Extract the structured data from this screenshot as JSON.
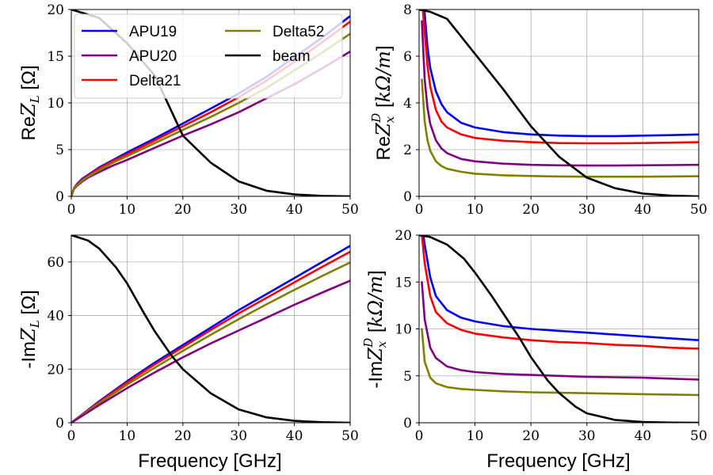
{
  "chart_data": [
    {
      "type": "line",
      "ylabel": "ReZ_L [Ω]",
      "xlim": [
        0,
        50
      ],
      "ylim": [
        0,
        20
      ],
      "xticks": [
        0,
        10,
        20,
        30,
        40,
        50
      ],
      "yticks": [
        0,
        5,
        10,
        15,
        20
      ],
      "xlabel": "",
      "grid": true,
      "legend": {
        "placement": "top-left",
        "columns": 2
      },
      "series": [
        {
          "name": "APU19",
          "color": "#0000ff",
          "x": [
            0,
            0.5,
            1,
            2,
            3,
            5,
            7.5,
            10,
            15,
            20,
            25,
            30,
            35,
            40,
            45,
            50
          ],
          "y": [
            0,
            0.9,
            1.3,
            1.9,
            2.3,
            3.1,
            3.9,
            4.7,
            6.2,
            7.8,
            9.4,
            11.0,
            12.8,
            14.9,
            17.0,
            19.3
          ]
        },
        {
          "name": "APU20",
          "color": "#800080",
          "x": [
            0,
            0.5,
            1,
            2,
            3,
            5,
            7.5,
            10,
            15,
            20,
            25,
            30,
            35,
            40,
            45,
            50
          ],
          "y": [
            0,
            0.8,
            1.1,
            1.6,
            2.0,
            2.6,
            3.3,
            3.9,
            5.2,
            6.5,
            7.7,
            9.0,
            10.5,
            12.0,
            13.7,
            15.5
          ]
        },
        {
          "name": "Delta21",
          "color": "#ff0000",
          "x": [
            0,
            0.5,
            1,
            2,
            3,
            5,
            7.5,
            10,
            15,
            20,
            25,
            30,
            35,
            40,
            45,
            50
          ],
          "y": [
            0,
            0.9,
            1.2,
            1.8,
            2.2,
            3.0,
            3.8,
            4.5,
            6.0,
            7.5,
            9.0,
            10.6,
            12.4,
            14.4,
            16.5,
            18.7
          ]
        },
        {
          "name": "Delta52",
          "color": "#808000",
          "x": [
            0,
            0.5,
            1,
            2,
            3,
            5,
            7.5,
            10,
            15,
            20,
            25,
            30,
            35,
            40,
            45,
            50
          ],
          "y": [
            0,
            0.85,
            1.15,
            1.7,
            2.1,
            2.8,
            3.6,
            4.3,
            5.7,
            7.1,
            8.5,
            10.0,
            11.6,
            13.5,
            15.4,
            17.4
          ]
        },
        {
          "name": "beam",
          "color": "#000000",
          "x": [
            0,
            5,
            10,
            15,
            20,
            25,
            30,
            35,
            40,
            45,
            50
          ],
          "y": [
            20.0,
            19.1,
            16.4,
            12.9,
            6.5,
            3.6,
            1.6,
            0.6,
            0.2,
            0.05,
            0.0
          ]
        }
      ]
    },
    {
      "type": "line",
      "ylabel": "ReZ_x^D [kΩ/m]",
      "xlim": [
        0,
        50
      ],
      "ylim": [
        0,
        8
      ],
      "xticks": [
        0,
        10,
        20,
        30,
        40,
        50
      ],
      "yticks": [
        0,
        2,
        4,
        6,
        8
      ],
      "xlabel": "",
      "grid": true,
      "series": [
        {
          "name": "APU19",
          "color": "#0000ff",
          "x": [
            0.5,
            1,
            1.5,
            2,
            3,
            4,
            5,
            7.5,
            10,
            15,
            20,
            25,
            30,
            35,
            40,
            45,
            50
          ],
          "y": [
            9.0,
            7.8,
            6.4,
            5.5,
            4.5,
            3.95,
            3.6,
            3.15,
            2.95,
            2.75,
            2.65,
            2.6,
            2.58,
            2.58,
            2.6,
            2.62,
            2.65
          ]
        },
        {
          "name": "Delta21",
          "color": "#ff0000",
          "x": [
            0.5,
            1,
            1.5,
            2,
            3,
            4,
            5,
            7.5,
            10,
            15,
            20,
            25,
            30,
            35,
            40,
            45,
            50
          ],
          "y": [
            8.5,
            7.0,
            5.6,
            4.7,
            3.7,
            3.2,
            2.95,
            2.65,
            2.5,
            2.38,
            2.32,
            2.28,
            2.27,
            2.27,
            2.28,
            2.3,
            2.32
          ]
        },
        {
          "name": "APU20",
          "color": "#800080",
          "x": [
            0.5,
            1,
            1.5,
            2,
            3,
            4,
            5,
            7.5,
            10,
            15,
            20,
            25,
            30,
            35,
            40,
            45,
            50
          ],
          "y": [
            7.5,
            5.0,
            3.8,
            3.1,
            2.4,
            2.05,
            1.85,
            1.6,
            1.5,
            1.4,
            1.35,
            1.33,
            1.32,
            1.32,
            1.33,
            1.34,
            1.35
          ]
        },
        {
          "name": "Delta52",
          "color": "#808000",
          "x": [
            0.5,
            1,
            1.5,
            2,
            3,
            4,
            5,
            7.5,
            10,
            15,
            20,
            25,
            30,
            35,
            40,
            45,
            50
          ],
          "y": [
            5.0,
            3.2,
            2.4,
            1.95,
            1.5,
            1.3,
            1.18,
            1.05,
            0.97,
            0.9,
            0.87,
            0.85,
            0.84,
            0.84,
            0.84,
            0.85,
            0.86
          ]
        },
        {
          "name": "beam",
          "color": "#000000",
          "x": [
            0,
            2,
            5,
            10,
            15,
            20,
            25,
            30,
            35,
            40,
            45,
            50
          ],
          "y": [
            8.0,
            7.9,
            7.6,
            6.1,
            4.6,
            3.0,
            1.7,
            0.8,
            0.35,
            0.12,
            0.03,
            0.0
          ]
        }
      ]
    },
    {
      "type": "line",
      "ylabel": "-ImZ_L [Ω]",
      "xlim": [
        0,
        50
      ],
      "ylim": [
        0,
        70
      ],
      "xticks": [
        0,
        10,
        20,
        30,
        40,
        50
      ],
      "yticks": [
        0,
        20,
        40,
        60
      ],
      "xlabel": "Frequency [GHz]",
      "grid": true,
      "series": [
        {
          "name": "APU19",
          "color": "#0000ff",
          "x": [
            0,
            5,
            10,
            15,
            20,
            25,
            30,
            35,
            40,
            45,
            50
          ],
          "y": [
            0,
            8.0,
            15.5,
            22.5,
            29.0,
            35.5,
            42.0,
            48.0,
            54.0,
            60.0,
            66.0
          ]
        },
        {
          "name": "Delta21",
          "color": "#ff0000",
          "x": [
            0,
            5,
            10,
            15,
            20,
            25,
            30,
            35,
            40,
            45,
            50
          ],
          "y": [
            0,
            7.7,
            15.0,
            21.8,
            28.2,
            34.6,
            40.8,
            46.6,
            52.4,
            58.2,
            63.8
          ]
        },
        {
          "name": "Delta52",
          "color": "#808000",
          "x": [
            0,
            5,
            10,
            15,
            20,
            25,
            30,
            35,
            40,
            45,
            50
          ],
          "y": [
            0,
            7.3,
            14.2,
            20.6,
            26.8,
            32.8,
            38.6,
            44.2,
            49.6,
            54.8,
            59.8
          ]
        },
        {
          "name": "APU20",
          "color": "#800080",
          "x": [
            0,
            5,
            10,
            15,
            20,
            25,
            30,
            35,
            40,
            45,
            50
          ],
          "y": [
            0,
            6.6,
            12.9,
            18.8,
            24.4,
            29.6,
            34.4,
            39.2,
            44.0,
            48.6,
            53.0
          ]
        },
        {
          "name": "beam",
          "color": "#000000",
          "x": [
            0,
            3,
            5,
            8,
            10,
            13,
            15,
            18,
            20,
            25,
            30,
            35,
            40,
            45,
            50
          ],
          "y": [
            70.0,
            68.0,
            65.0,
            58.0,
            52.0,
            41.0,
            34.0,
            25.0,
            20.0,
            11.0,
            5.0,
            2.0,
            0.7,
            0.2,
            0.0
          ]
        }
      ]
    },
    {
      "type": "line",
      "ylabel": "-ImZ_x^D [kΩ/m]",
      "xlim": [
        0,
        50
      ],
      "ylim": [
        0,
        20
      ],
      "xticks": [
        0,
        10,
        20,
        30,
        40,
        50
      ],
      "yticks": [
        0,
        5,
        10,
        15,
        20
      ],
      "xlabel": "Frequency [GHz]",
      "grid": true,
      "series": [
        {
          "name": "APU19",
          "color": "#0000ff",
          "x": [
            0.5,
            1,
            2,
            3,
            5,
            7.5,
            10,
            15,
            20,
            25,
            30,
            35,
            40,
            45,
            50
          ],
          "y": [
            21.0,
            19.0,
            15.5,
            13.5,
            12.0,
            11.2,
            10.8,
            10.3,
            10.0,
            9.8,
            9.6,
            9.4,
            9.2,
            9.0,
            8.8
          ]
        },
        {
          "name": "Delta21",
          "color": "#ff0000",
          "x": [
            0.5,
            1,
            2,
            3,
            5,
            7.5,
            10,
            15,
            20,
            25,
            30,
            35,
            40,
            45,
            50
          ],
          "y": [
            20.0,
            17.0,
            13.5,
            11.8,
            10.6,
            9.9,
            9.5,
            9.1,
            8.8,
            8.6,
            8.5,
            8.3,
            8.2,
            8.0,
            7.9
          ]
        },
        {
          "name": "APU20",
          "color": "#800080",
          "x": [
            0.5,
            1,
            2,
            3,
            5,
            7.5,
            10,
            15,
            20,
            25,
            30,
            35,
            40,
            45,
            50
          ],
          "y": [
            15.0,
            11.0,
            8.0,
            6.9,
            6.0,
            5.6,
            5.4,
            5.2,
            5.1,
            5.0,
            4.9,
            4.85,
            4.8,
            4.7,
            4.6
          ]
        },
        {
          "name": "Delta52",
          "color": "#808000",
          "x": [
            0.5,
            1,
            2,
            3,
            5,
            7.5,
            10,
            15,
            20,
            25,
            30,
            35,
            40,
            45,
            50
          ],
          "y": [
            10.0,
            6.5,
            4.8,
            4.2,
            3.8,
            3.6,
            3.5,
            3.35,
            3.25,
            3.2,
            3.15,
            3.1,
            3.05,
            3.0,
            2.95
          ]
        },
        {
          "name": "beam",
          "color": "#000000",
          "x": [
            0,
            2,
            5,
            8,
            10,
            13,
            15,
            18,
            20,
            23,
            25,
            28,
            30,
            35,
            40,
            45,
            50
          ],
          "y": [
            20.0,
            19.8,
            19.0,
            17.5,
            16.0,
            13.5,
            11.7,
            9.0,
            7.0,
            4.5,
            3.2,
            1.7,
            1.0,
            0.3,
            0.08,
            0.02,
            0.0
          ]
        }
      ]
    }
  ]
}
